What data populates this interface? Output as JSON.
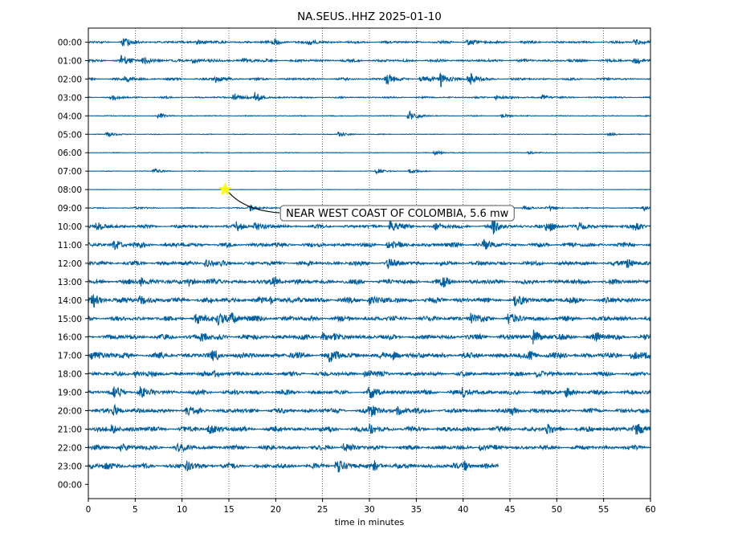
{
  "chart_data": {
    "type": "line",
    "title": "NA.SEUS..HHZ 2025-01-10",
    "xlabel": "time in minutes",
    "ylabel": "",
    "xlim": [
      0,
      60
    ],
    "x_ticks": [
      0,
      5,
      10,
      15,
      20,
      25,
      30,
      35,
      40,
      45,
      50,
      55,
      60
    ],
    "grid": "vertical dotted lines at x ticks",
    "trace_color": "#005f9e",
    "row_labels": [
      "00:00",
      "01:00",
      "02:00",
      "03:00",
      "04:00",
      "05:00",
      "06:00",
      "07:00",
      "08:00",
      "09:00",
      "10:00",
      "11:00",
      "12:00",
      "13:00",
      "14:00",
      "15:00",
      "16:00",
      "17:00",
      "18:00",
      "19:00",
      "20:00",
      "21:00",
      "22:00",
      "23:00",
      "00:00"
    ],
    "series": [
      {
        "hour": "00:00",
        "end_minute": 60,
        "noise_level": 0.16,
        "bursts": [
          [
            3.7,
            0.5
          ],
          [
            11.6,
            0.45
          ],
          [
            19.7,
            0.42
          ],
          [
            23.5,
            0.35
          ],
          [
            40.5,
            0.35
          ],
          [
            58.3,
            0.35
          ]
        ]
      },
      {
        "hour": "01:00",
        "end_minute": 60,
        "noise_level": 0.18,
        "bursts": [
          [
            3.5,
            0.55
          ],
          [
            5.8,
            0.5
          ],
          [
            11.2,
            0.35
          ],
          [
            16.5,
            0.4
          ],
          [
            58.3,
            0.4
          ]
        ]
      },
      {
        "hour": "02:00",
        "end_minute": 60,
        "noise_level": 0.15,
        "bursts": [
          [
            4.0,
            0.35
          ],
          [
            13.5,
            0.45
          ],
          [
            31.8,
            0.7
          ],
          [
            35.5,
            0.5
          ],
          [
            37.6,
            0.95
          ],
          [
            40.5,
            0.35
          ],
          [
            40.8,
            0.4
          ]
        ]
      },
      {
        "hour": "03:00",
        "end_minute": 60,
        "noise_level": 0.11,
        "bursts": [
          [
            2.5,
            0.3
          ],
          [
            15.5,
            0.55
          ],
          [
            17.8,
            0.6
          ],
          [
            43.5,
            0.3
          ],
          [
            48.5,
            0.3
          ]
        ]
      },
      {
        "hour": "04:00",
        "end_minute": 60,
        "noise_level": 0.06,
        "bursts": [
          [
            7.5,
            0.3
          ],
          [
            34.2,
            0.8
          ],
          [
            44.2,
            0.2
          ]
        ]
      },
      {
        "hour": "05:00",
        "end_minute": 60,
        "noise_level": 0.05,
        "bursts": [
          [
            2.0,
            0.3
          ],
          [
            26.7,
            0.3
          ],
          [
            55.6,
            0.2
          ]
        ]
      },
      {
        "hour": "06:00",
        "end_minute": 60,
        "noise_level": 0.04,
        "bursts": [
          [
            37.0,
            0.3
          ],
          [
            47.0,
            0.2
          ]
        ]
      },
      {
        "hour": "07:00",
        "end_minute": 60,
        "noise_level": 0.04,
        "bursts": [
          [
            7.0,
            0.3
          ],
          [
            30.8,
            0.35
          ],
          [
            34.3,
            0.3
          ]
        ]
      },
      {
        "hour": "08:00",
        "end_minute": 60,
        "noise_level": 0.03,
        "bursts": []
      },
      {
        "hour": "09:00",
        "end_minute": 60,
        "noise_level": 0.07,
        "bursts": [
          [
            5.0,
            0.2
          ],
          [
            17.2,
            0.45
          ],
          [
            22.2,
            0.3
          ],
          [
            43.2,
            0.45
          ],
          [
            46.5,
            0.3
          ],
          [
            49.0,
            0.35
          ],
          [
            59.3,
            0.3
          ]
        ]
      },
      {
        "hour": "10:00",
        "end_minute": 60,
        "noise_level": 0.22,
        "bursts": [
          [
            0.9,
            0.5
          ],
          [
            15.8,
            0.6
          ],
          [
            17.8,
            0.5
          ],
          [
            32.2,
            0.8
          ],
          [
            37.0,
            0.45
          ],
          [
            43.2,
            0.9
          ],
          [
            49.0,
            0.8
          ],
          [
            52.3,
            0.5
          ],
          [
            58.3,
            0.6
          ]
        ]
      },
      {
        "hour": "11:00",
        "end_minute": 60,
        "noise_level": 0.3,
        "bursts": [
          [
            2.8,
            0.55
          ],
          [
            32.0,
            0.5
          ],
          [
            42.2,
            0.45
          ]
        ]
      },
      {
        "hour": "12:00",
        "end_minute": 60,
        "noise_level": 0.3,
        "bursts": [
          [
            12.5,
            0.5
          ],
          [
            32.0,
            0.45
          ],
          [
            57.5,
            0.45
          ]
        ]
      },
      {
        "hour": "13:00",
        "end_minute": 60,
        "noise_level": 0.33,
        "bursts": [
          [
            5.5,
            0.55
          ],
          [
            10.8,
            0.5
          ],
          [
            19.8,
            0.5
          ],
          [
            37.8,
            0.5
          ]
        ]
      },
      {
        "hour": "14:00",
        "end_minute": 60,
        "noise_level": 0.38,
        "bursts": [
          [
            0.5,
            0.75
          ],
          [
            5.5,
            0.6
          ],
          [
            19.5,
            0.5
          ],
          [
            30.0,
            0.5
          ],
          [
            45.5,
            0.45
          ]
        ]
      },
      {
        "hour": "15:00",
        "end_minute": 60,
        "noise_level": 0.35,
        "bursts": [
          [
            11.5,
            0.6
          ],
          [
            13.8,
            0.7
          ],
          [
            15.3,
            0.6
          ],
          [
            40.8,
            0.55
          ],
          [
            44.8,
            0.5
          ]
        ]
      },
      {
        "hour": "16:00",
        "end_minute": 60,
        "noise_level": 0.35,
        "bursts": [
          [
            12.0,
            0.5
          ],
          [
            25.0,
            0.55
          ],
          [
            47.5,
            0.8
          ],
          [
            54.0,
            0.5
          ]
        ]
      },
      {
        "hour": "17:00",
        "end_minute": 60,
        "noise_level": 0.38,
        "bursts": [
          [
            0.3,
            0.55
          ],
          [
            13.3,
            0.5
          ],
          [
            25.8,
            0.75
          ],
          [
            32.5,
            0.5
          ],
          [
            47.0,
            0.55
          ],
          [
            58.0,
            0.5
          ]
        ]
      },
      {
        "hour": "18:00",
        "end_minute": 60,
        "noise_level": 0.3,
        "bursts": [
          [
            5.0,
            0.45
          ],
          [
            13.5,
            0.45
          ],
          [
            29.5,
            0.45
          ],
          [
            47.8,
            0.5
          ]
        ]
      },
      {
        "hour": "19:00",
        "end_minute": 60,
        "noise_level": 0.32,
        "bursts": [
          [
            2.8,
            0.55
          ],
          [
            5.5,
            0.6
          ],
          [
            30.0,
            0.6
          ],
          [
            40.0,
            0.5
          ],
          [
            51.0,
            0.45
          ]
        ]
      },
      {
        "hour": "20:00",
        "end_minute": 60,
        "noise_level": 0.32,
        "bursts": [
          [
            2.8,
            0.55
          ],
          [
            10.5,
            0.5
          ],
          [
            30.0,
            0.75
          ],
          [
            33.0,
            0.5
          ],
          [
            45.2,
            0.45
          ]
        ]
      },
      {
        "hour": "21:00",
        "end_minute": 60,
        "noise_level": 0.35,
        "bursts": [
          [
            2.5,
            0.5
          ],
          [
            12.8,
            0.55
          ],
          [
            30.0,
            0.55
          ],
          [
            49.0,
            0.5
          ],
          [
            58.3,
            0.65
          ]
        ]
      },
      {
        "hour": "22:00",
        "end_minute": 60,
        "noise_level": 0.3,
        "bursts": [
          [
            3.5,
            0.5
          ],
          [
            9.5,
            0.5
          ],
          [
            27.2,
            0.5
          ],
          [
            41.8,
            0.45
          ]
        ]
      },
      {
        "hour": "23:00",
        "end_minute": 43.8,
        "noise_level": 0.33,
        "bursts": [
          [
            1.8,
            0.5
          ],
          [
            10.5,
            0.55
          ],
          [
            26.5,
            0.85
          ],
          [
            30.5,
            0.5
          ],
          [
            40.0,
            0.7
          ]
        ]
      },
      {
        "hour": "00:00",
        "end_minute": 0,
        "noise_level": 0,
        "bursts": []
      }
    ],
    "annotations": [
      {
        "text": "NEAR WEST COAST OF COLOMBIA, 5.6 mw",
        "marker": "star",
        "marker_color": "#ffff00",
        "marker_position": {
          "hour": "08:00",
          "minute": 14.6
        },
        "label_position": {
          "hour": "09:00",
          "minute": 20.5
        }
      }
    ]
  }
}
